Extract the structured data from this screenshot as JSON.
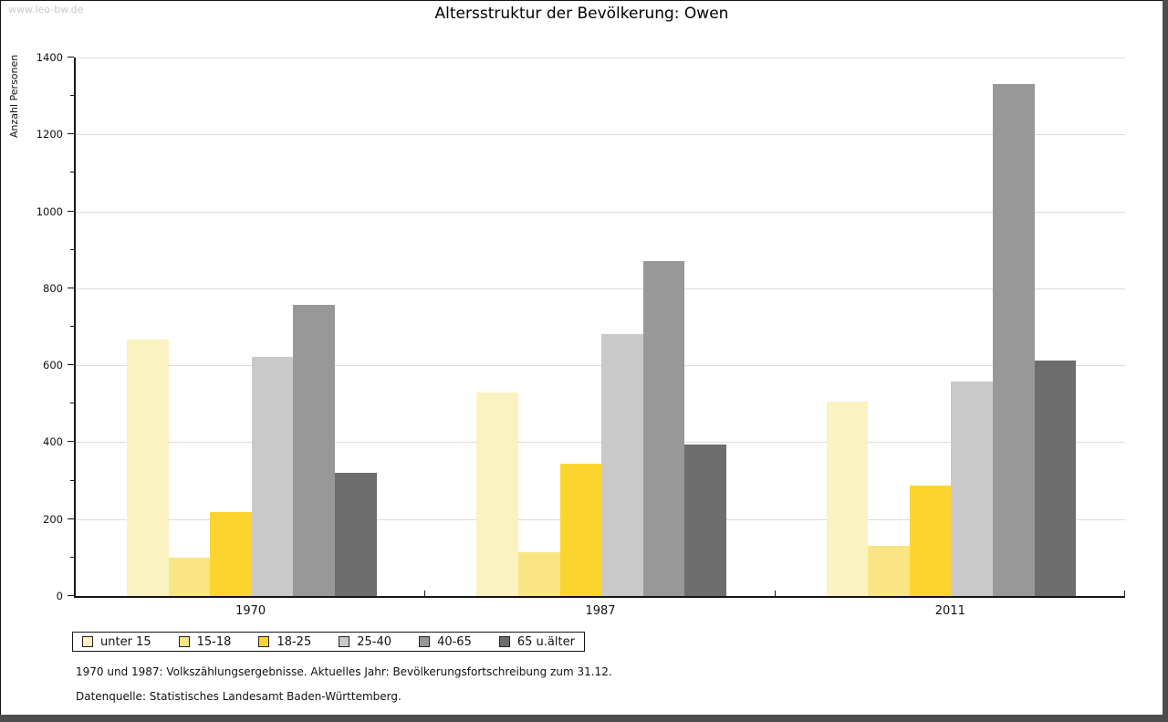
{
  "header": {
    "watermark": "www.leo-bw.de",
    "title": "Altersstruktur der Bevölkerung: Owen"
  },
  "chart_data": {
    "type": "bar",
    "title": "Altersstruktur der Bevölkerung: Owen",
    "xlabel": "",
    "ylabel": "Anzahl Personen",
    "categories": [
      "1970",
      "1987",
      "2011"
    ],
    "series": [
      {
        "name": "unter 15",
        "color": "#FAF2C0",
        "values": [
          667,
          530,
          505
        ]
      },
      {
        "name": "15-18",
        "color": "#FAE585",
        "values": [
          100,
          113,
          131
        ]
      },
      {
        "name": "18-25",
        "color": "#FCD42E",
        "values": [
          218,
          343,
          288
        ]
      },
      {
        "name": "25-40",
        "color": "#C9C9C9",
        "values": [
          622,
          682,
          558
        ]
      },
      {
        "name": "40-65",
        "color": "#989898",
        "values": [
          758,
          870,
          1332
        ]
      },
      {
        "name": "65 u.älter",
        "color": "#6D6D6D",
        "values": [
          320,
          393,
          613
        ]
      }
    ],
    "ylim": [
      0,
      1400
    ],
    "ytick_step": 200,
    "minor_tick_step": 100,
    "grid": true,
    "legend_position": "bottom",
    "axis_color": "#161616",
    "gridline_color": "#DCDCDC"
  },
  "footnotes": {
    "line1": "1970 und 1987: Volkszählungsergebnisse. Aktuelles Jahr: Bevölkerungsfortschreibung zum 31.12.",
    "line2": "Datenquelle: Statistisches Landesamt Baden-Württemberg."
  }
}
